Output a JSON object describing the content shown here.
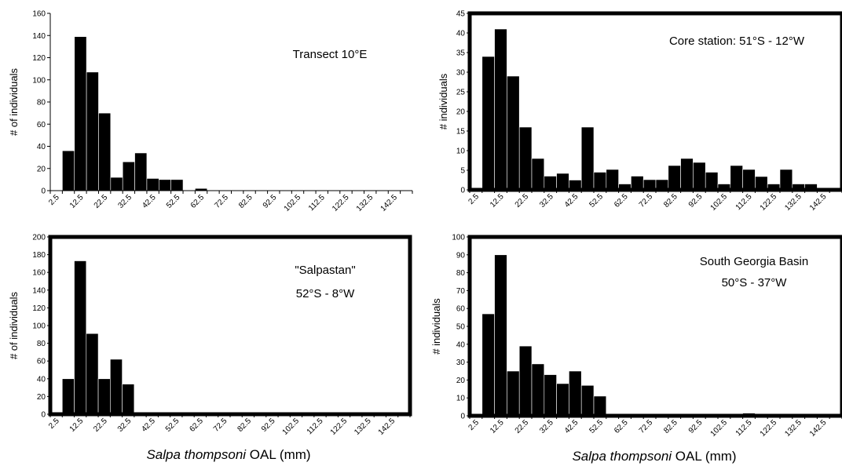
{
  "x_axis_title": {
    "italic": "Salpa thompsoni",
    "rest": " OAL (mm)"
  },
  "chart_data": [
    {
      "type": "bar",
      "panel": "top-left",
      "frame": "thin",
      "ylabel": "# of individuals",
      "ylim": [
        0,
        160
      ],
      "ytick_step": 20,
      "annotations": [
        {
          "text": "Transect 10°E"
        }
      ],
      "categories": [
        "2.5",
        "7.5",
        "12.5",
        "17.5",
        "22.5",
        "27.5",
        "32.5",
        "37.5",
        "42.5",
        "47.5",
        "52.5",
        "57.5",
        "62.5",
        "67.5",
        "72.5",
        "77.5",
        "82.5",
        "87.5",
        "92.5",
        "97.5",
        "102.5",
        "107.5",
        "112.5",
        "117.5",
        "122.5",
        "127.5",
        "132.5",
        "137.5",
        "142.5",
        "147.5"
      ],
      "tick_labels": [
        "2.5",
        "12.5",
        "22.5",
        "32.5",
        "42.5",
        "52.5",
        "62.5",
        "72.5",
        "82.5",
        "92.5",
        "102.5",
        "112.5",
        "122.5",
        "132.5",
        "142.5"
      ],
      "values": [
        0,
        36,
        139,
        107,
        70,
        12,
        26,
        34,
        11,
        10,
        10,
        0,
        2,
        0,
        0.5,
        0.5,
        0,
        0,
        0,
        0,
        0,
        0,
        0,
        0,
        0,
        0,
        0,
        0,
        0,
        0
      ]
    },
    {
      "type": "bar",
      "panel": "top-right",
      "frame": "thick",
      "ylabel": "# individuals",
      "ylim": [
        0,
        45
      ],
      "ytick_step": 5,
      "annotations": [
        {
          "text": "Core station: 51°S - 12°W"
        }
      ],
      "categories": [
        "2.5",
        "7.5",
        "12.5",
        "17.5",
        "22.5",
        "27.5",
        "32.5",
        "37.5",
        "42.5",
        "47.5",
        "52.5",
        "57.5",
        "62.5",
        "67.5",
        "72.5",
        "77.5",
        "82.5",
        "87.5",
        "92.5",
        "97.5",
        "102.5",
        "107.5",
        "112.5",
        "117.5",
        "122.5",
        "127.5",
        "132.5",
        "137.5",
        "142.5",
        "147.5"
      ],
      "tick_labels": [
        "2.5",
        "12.5",
        "22.5",
        "32.5",
        "42.5",
        "52.5",
        "62.5",
        "72.5",
        "82.5",
        "92.5",
        "102.5",
        "112.5",
        "122.5",
        "132.5",
        "142.5"
      ],
      "values": [
        0,
        34,
        41,
        29,
        16,
        8,
        3.5,
        4.2,
        2.5,
        16,
        4.5,
        5.2,
        1.5,
        3.5,
        2.6,
        2.6,
        6.2,
        8,
        7,
        4.5,
        1.5,
        6.2,
        5.2,
        3.4,
        1.5,
        5.2,
        1.5,
        1.5,
        0,
        0
      ]
    },
    {
      "type": "bar",
      "panel": "bottom-left",
      "frame": "thick",
      "ylabel": "# of individuals",
      "ylim": [
        0,
        200
      ],
      "ytick_step": 20,
      "annotations": [
        {
          "text": "\"Salpastan\""
        },
        {
          "text": "52°S - 8°W"
        }
      ],
      "categories": [
        "2.5",
        "7.5",
        "12.5",
        "17.5",
        "22.5",
        "27.5",
        "32.5",
        "37.5",
        "42.5",
        "47.5",
        "52.5",
        "57.5",
        "62.5",
        "67.5",
        "72.5",
        "77.5",
        "82.5",
        "87.5",
        "92.5",
        "97.5",
        "102.5",
        "107.5",
        "112.5",
        "117.5",
        "122.5",
        "127.5",
        "132.5",
        "137.5",
        "142.5",
        "147.5"
      ],
      "tick_labels": [
        "2.5",
        "12.5",
        "22.5",
        "32.5",
        "42.5",
        "52.5",
        "62.5",
        "72.5",
        "82.5",
        "92.5",
        "102.5",
        "112.5",
        "122.5",
        "132.5",
        "142.5"
      ],
      "values": [
        1.5,
        40,
        173,
        91,
        40,
        62,
        34,
        2,
        2,
        0,
        0,
        0,
        0,
        0,
        0,
        0,
        0,
        0,
        2,
        0,
        0,
        0,
        0,
        0,
        0,
        0,
        0,
        0,
        0,
        0
      ]
    },
    {
      "type": "bar",
      "panel": "bottom-right",
      "frame": "thick",
      "ylabel": "# individuals",
      "ylim": [
        0,
        100
      ],
      "ytick_step": 10,
      "annotations": [
        {
          "text": "South Georgia Basin"
        },
        {
          "text": "50°S - 37°W"
        }
      ],
      "categories": [
        "2.5",
        "7.5",
        "12.5",
        "17.5",
        "22.5",
        "27.5",
        "32.5",
        "37.5",
        "42.5",
        "47.5",
        "52.5",
        "57.5",
        "62.5",
        "67.5",
        "72.5",
        "77.5",
        "82.5",
        "87.5",
        "92.5",
        "97.5",
        "102.5",
        "107.5",
        "112.5",
        "117.5",
        "122.5",
        "127.5",
        "132.5",
        "137.5",
        "142.5",
        "147.5"
      ],
      "tick_labels": [
        "2.5",
        "12.5",
        "22.5",
        "32.5",
        "42.5",
        "52.5",
        "62.5",
        "72.5",
        "82.5",
        "92.5",
        "102.5",
        "112.5",
        "122.5",
        "132.5",
        "142.5"
      ],
      "values": [
        0,
        57,
        90,
        25,
        39,
        29,
        23,
        18,
        25,
        17,
        11,
        0,
        0,
        0,
        0,
        0,
        0,
        0,
        0,
        0,
        0,
        1,
        1.5,
        0,
        0,
        0,
        0,
        0,
        0,
        0
      ]
    }
  ]
}
